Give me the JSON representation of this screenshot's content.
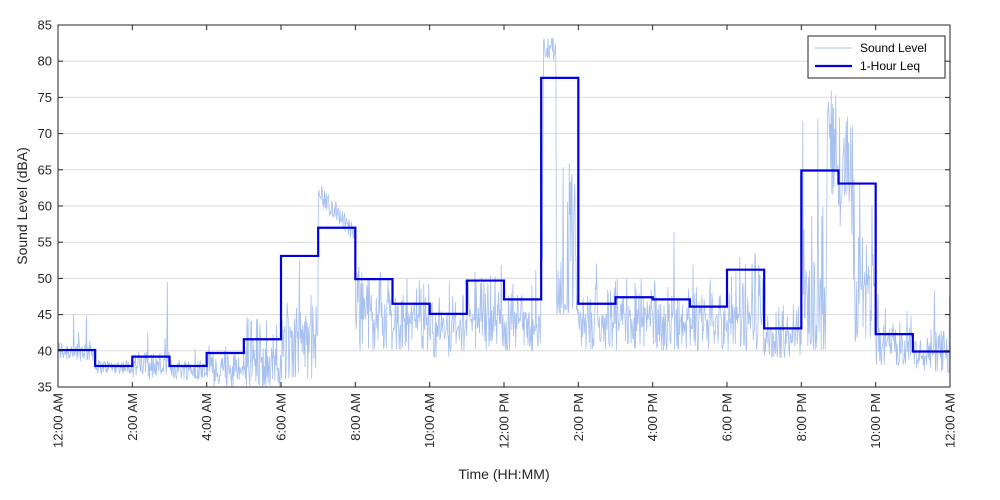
{
  "chart_data": {
    "type": "line",
    "xlabel": "Time (HH:MM)",
    "ylabel": "Sound Level (dBA)",
    "ylim": [
      35,
      85
    ],
    "xlim_hours": [
      0,
      24
    ],
    "y_ticks": [
      35,
      40,
      45,
      50,
      55,
      60,
      65,
      70,
      75,
      80,
      85
    ],
    "x_ticks": [
      {
        "hour": 0,
        "label": "12:00 AM"
      },
      {
        "hour": 2,
        "label": "2:00 AM"
      },
      {
        "hour": 4,
        "label": "4:00 AM"
      },
      {
        "hour": 6,
        "label": "6:00 AM"
      },
      {
        "hour": 8,
        "label": "8:00 AM"
      },
      {
        "hour": 10,
        "label": "10:00 AM"
      },
      {
        "hour": 12,
        "label": "12:00 PM"
      },
      {
        "hour": 14,
        "label": "2:00 PM"
      },
      {
        "hour": 16,
        "label": "4:00 PM"
      },
      {
        "hour": 18,
        "label": "6:00 PM"
      },
      {
        "hour": 20,
        "label": "8:00 PM"
      },
      {
        "hour": 22,
        "label": "10:00 PM"
      },
      {
        "hour": 24,
        "label": "12:00 AM"
      }
    ],
    "grid": "horizontal",
    "legend_position": "top-right",
    "series": [
      {
        "name": "Sound Level",
        "color": "#a7c0f0",
        "style": "thin",
        "envelope": [
          {
            "hour": 0,
            "min": 39,
            "max": 42,
            "base": 40,
            "spike_max": 48
          },
          {
            "hour": 1,
            "min": 37,
            "max": 39,
            "base": 37.8,
            "spike_max": 39
          },
          {
            "hour": 2,
            "min": 36,
            "max": 40,
            "base": 38,
            "spike_max": 50
          },
          {
            "hour": 3,
            "min": 36,
            "max": 39,
            "base": 37.5,
            "spike_max": 46
          },
          {
            "hour": 4,
            "min": 35,
            "max": 41,
            "base": 38,
            "spike_max": 50
          },
          {
            "hour": 5,
            "min": 35,
            "max": 45,
            "base": 39,
            "spike_max": 50
          },
          {
            "hour": 6,
            "min": 36,
            "max": 48,
            "base": 43,
            "spike_max": 56
          },
          {
            "hour": 7,
            "min": 52,
            "max": 62,
            "base": 56,
            "spike_max": 62
          },
          {
            "hour": 8,
            "min": 40,
            "max": 52,
            "base": 46,
            "spike_max": 53
          },
          {
            "hour": 9,
            "min": 40,
            "max": 50,
            "base": 44,
            "spike_max": 54
          },
          {
            "hour": 10,
            "min": 39,
            "max": 48,
            "base": 43,
            "spike_max": 52
          },
          {
            "hour": 11,
            "min": 40,
            "max": 52,
            "base": 45,
            "spike_max": 59
          },
          {
            "hour": 12,
            "min": 40,
            "max": 50,
            "base": 44,
            "spike_max": 58
          },
          {
            "hour": 13,
            "min": 44,
            "max": 84,
            "base": 70,
            "spike_max": 84
          },
          {
            "hour": 14,
            "min": 40,
            "max": 49,
            "base": 44,
            "spike_max": 56
          },
          {
            "hour": 15,
            "min": 40,
            "max": 50,
            "base": 45,
            "spike_max": 56
          },
          {
            "hour": 16,
            "min": 40,
            "max": 50,
            "base": 45,
            "spike_max": 57
          },
          {
            "hour": 17,
            "min": 40,
            "max": 49,
            "base": 44,
            "spike_max": 53
          },
          {
            "hour": 18,
            "min": 40,
            "max": 53,
            "base": 45,
            "spike_max": 57
          },
          {
            "hour": 19,
            "min": 39,
            "max": 47,
            "base": 42,
            "spike_max": 68
          },
          {
            "hour": 20,
            "min": 40,
            "max": 62,
            "base": 50,
            "spike_max": 76
          },
          {
            "hour": 21,
            "min": 41,
            "max": 65,
            "base": 49,
            "spike_max": 73
          },
          {
            "hour": 22,
            "min": 38,
            "max": 46,
            "base": 41,
            "spike_max": 49
          },
          {
            "hour": 23,
            "min": 37,
            "max": 43,
            "base": 40,
            "spike_max": 49
          }
        ]
      },
      {
        "name": "1-Hour Leq",
        "color": "#0000e0",
        "style": "step",
        "values": [
          40.1,
          37.9,
          39.2,
          37.9,
          39.7,
          41.6,
          53.1,
          57.0,
          49.9,
          46.5,
          45.1,
          49.7,
          47.1,
          77.7,
          46.5,
          47.4,
          47.1,
          46.1,
          51.2,
          43.1,
          64.9,
          63.1,
          42.3,
          39.9
        ]
      }
    ]
  }
}
